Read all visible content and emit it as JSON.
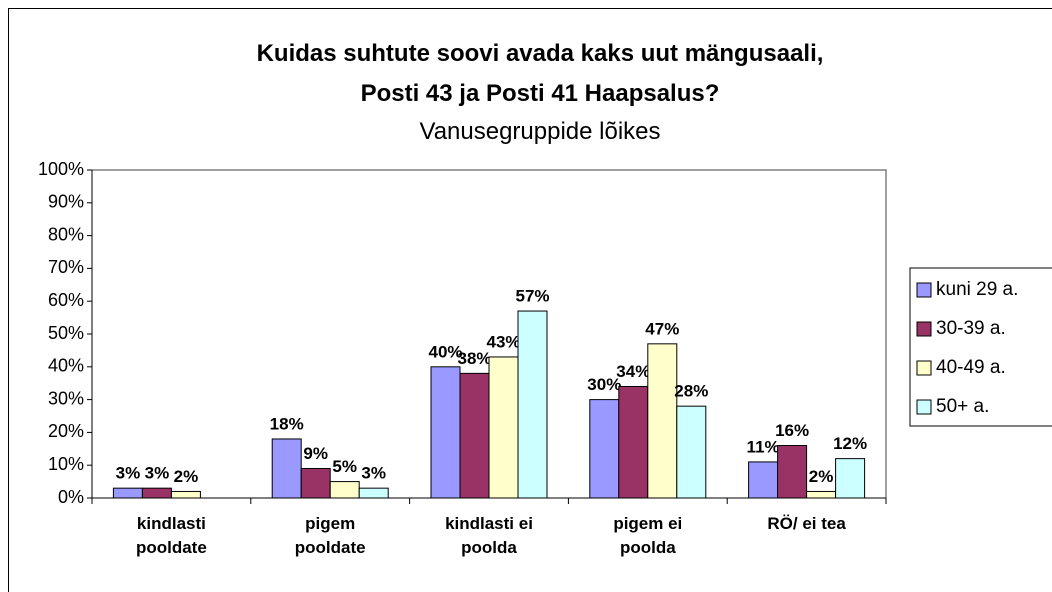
{
  "chart_data": {
    "type": "bar",
    "title": "Kuidas suhtute soovi avada kaks uut mängusaali, Posti 43 ja Posti 41 Haapsalus?",
    "subtitle": "Vanusegruppide lõikes",
    "categories": [
      "kindlasti pooldate",
      "pigem pooldate",
      "kindlasti ei poolda",
      "pigem ei poolda",
      "RÖ/ ei tea"
    ],
    "series": [
      {
        "name": "kuni 29 a.",
        "color": "#9999ff",
        "values": [
          3,
          18,
          40,
          30,
          11
        ],
        "value_labels": [
          "3%",
          "18%",
          "40%",
          "30%",
          "11%"
        ]
      },
      {
        "name": "30-39 a.",
        "color": "#993366",
        "values": [
          3,
          9,
          38,
          34,
          16
        ],
        "value_labels": [
          "3%",
          "9%",
          "38%",
          "34%",
          "16%"
        ]
      },
      {
        "name": "40-49 a.",
        "color": "#ffffcc",
        "values": [
          2,
          5,
          43,
          47,
          2
        ],
        "value_labels": [
          "2%",
          "5%",
          "43%",
          "47%",
          "2%"
        ]
      },
      {
        "name": "50+ a.",
        "color": "#ccffff",
        "values": [
          null,
          3,
          57,
          28,
          12
        ],
        "value_labels": [
          null,
          "3%",
          "57%",
          "28%",
          "12%"
        ]
      }
    ],
    "ylim": [
      0,
      100
    ],
    "yticks": [
      {
        "value": 0,
        "label": "0%"
      },
      {
        "value": 10,
        "label": "10%"
      },
      {
        "value": 20,
        "label": "20%"
      },
      {
        "value": 30,
        "label": "30%"
      },
      {
        "value": 40,
        "label": "40%"
      },
      {
        "value": 50,
        "label": "50%"
      },
      {
        "value": 60,
        "label": "60%"
      },
      {
        "value": 70,
        "label": "70%"
      },
      {
        "value": 80,
        "label": "80%"
      },
      {
        "value": 90,
        "label": "90%"
      },
      {
        "value": 100,
        "label": "100%"
      }
    ],
    "legend": "right"
  }
}
